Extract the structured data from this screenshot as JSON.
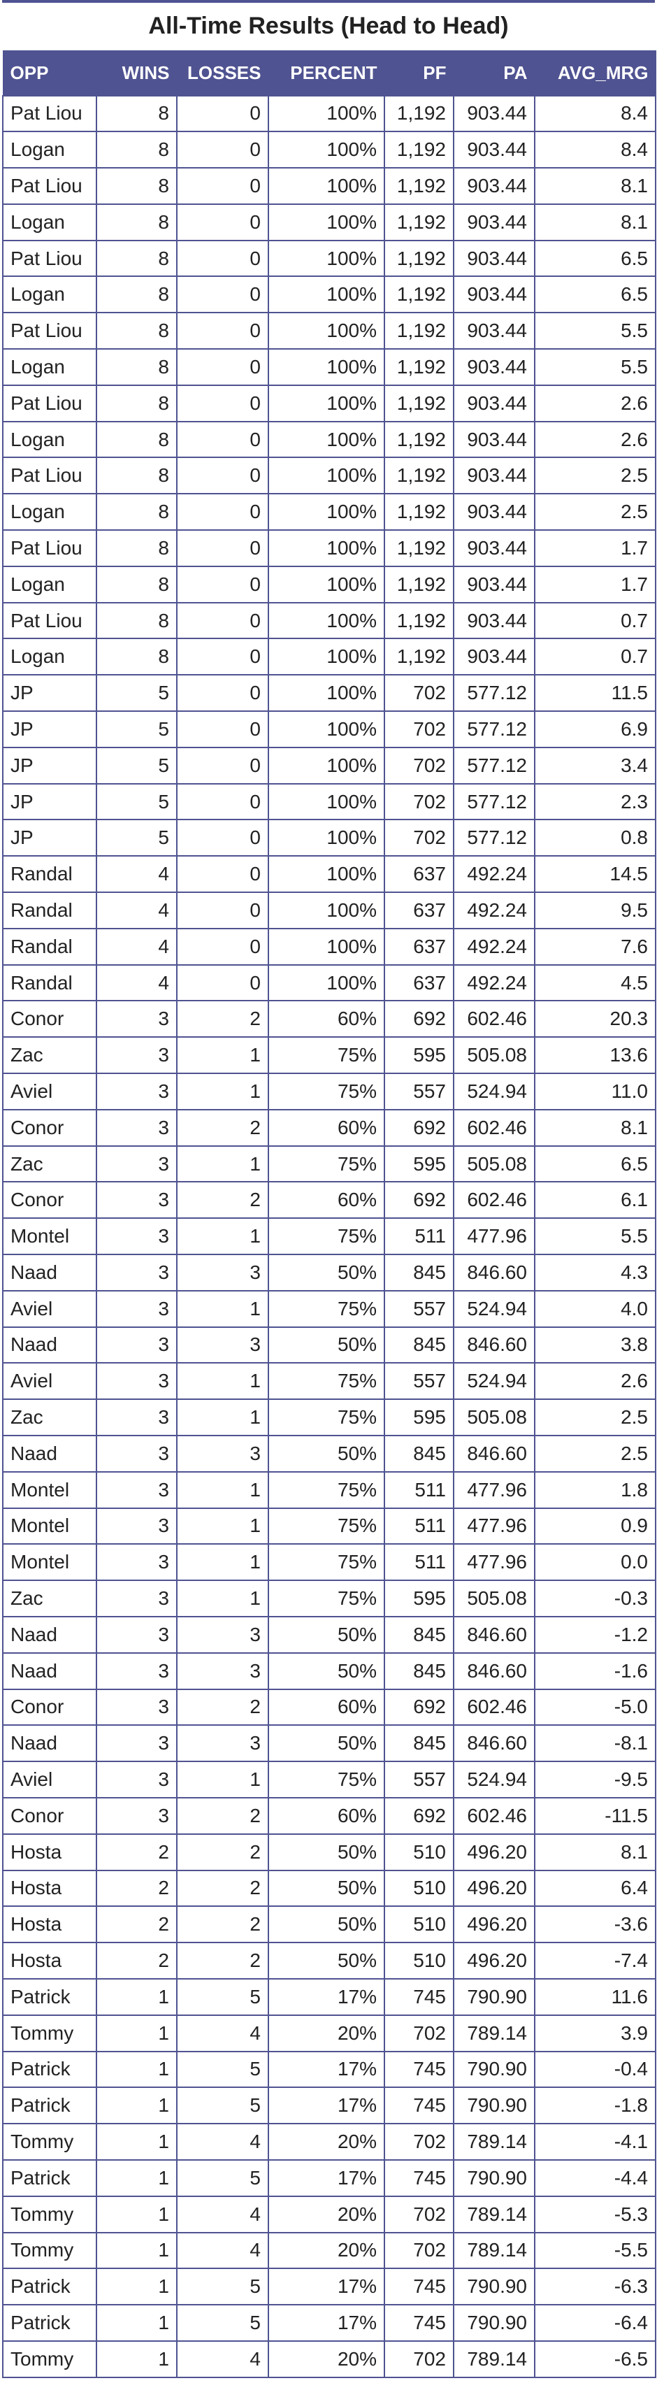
{
  "title": "All-Time Results (Head to Head)",
  "colors": {
    "accent": "#4f5391",
    "header_text": "#ffffff",
    "body_text": "#222222"
  },
  "table": {
    "headers": [
      "OPP",
      "WINS",
      "LOSSES",
      "PERCENT",
      "PF",
      "PA",
      "AVG_MRG"
    ],
    "rows": [
      [
        "Pat Liou",
        "8",
        "0",
        "100%",
        "1,192",
        "903.44",
        "8.4"
      ],
      [
        "Logan",
        "8",
        "0",
        "100%",
        "1,192",
        "903.44",
        "8.4"
      ],
      [
        "Pat Liou",
        "8",
        "0",
        "100%",
        "1,192",
        "903.44",
        "8.1"
      ],
      [
        "Logan",
        "8",
        "0",
        "100%",
        "1,192",
        "903.44",
        "8.1"
      ],
      [
        "Pat Liou",
        "8",
        "0",
        "100%",
        "1,192",
        "903.44",
        "6.5"
      ],
      [
        "Logan",
        "8",
        "0",
        "100%",
        "1,192",
        "903.44",
        "6.5"
      ],
      [
        "Pat Liou",
        "8",
        "0",
        "100%",
        "1,192",
        "903.44",
        "5.5"
      ],
      [
        "Logan",
        "8",
        "0",
        "100%",
        "1,192",
        "903.44",
        "5.5"
      ],
      [
        "Pat Liou",
        "8",
        "0",
        "100%",
        "1,192",
        "903.44",
        "2.6"
      ],
      [
        "Logan",
        "8",
        "0",
        "100%",
        "1,192",
        "903.44",
        "2.6"
      ],
      [
        "Pat Liou",
        "8",
        "0",
        "100%",
        "1,192",
        "903.44",
        "2.5"
      ],
      [
        "Logan",
        "8",
        "0",
        "100%",
        "1,192",
        "903.44",
        "2.5"
      ],
      [
        "Pat Liou",
        "8",
        "0",
        "100%",
        "1,192",
        "903.44",
        "1.7"
      ],
      [
        "Logan",
        "8",
        "0",
        "100%",
        "1,192",
        "903.44",
        "1.7"
      ],
      [
        "Pat Liou",
        "8",
        "0",
        "100%",
        "1,192",
        "903.44",
        "0.7"
      ],
      [
        "Logan",
        "8",
        "0",
        "100%",
        "1,192",
        "903.44",
        "0.7"
      ],
      [
        "JP",
        "5",
        "0",
        "100%",
        "702",
        "577.12",
        "11.5"
      ],
      [
        "JP",
        "5",
        "0",
        "100%",
        "702",
        "577.12",
        "6.9"
      ],
      [
        "JP",
        "5",
        "0",
        "100%",
        "702",
        "577.12",
        "3.4"
      ],
      [
        "JP",
        "5",
        "0",
        "100%",
        "702",
        "577.12",
        "2.3"
      ],
      [
        "JP",
        "5",
        "0",
        "100%",
        "702",
        "577.12",
        "0.8"
      ],
      [
        "Randal",
        "4",
        "0",
        "100%",
        "637",
        "492.24",
        "14.5"
      ],
      [
        "Randal",
        "4",
        "0",
        "100%",
        "637",
        "492.24",
        "9.5"
      ],
      [
        "Randal",
        "4",
        "0",
        "100%",
        "637",
        "492.24",
        "7.6"
      ],
      [
        "Randal",
        "4",
        "0",
        "100%",
        "637",
        "492.24",
        "4.5"
      ],
      [
        "Conor",
        "3",
        "2",
        "60%",
        "692",
        "602.46",
        "20.3"
      ],
      [
        "Zac",
        "3",
        "1",
        "75%",
        "595",
        "505.08",
        "13.6"
      ],
      [
        "Aviel",
        "3",
        "1",
        "75%",
        "557",
        "524.94",
        "11.0"
      ],
      [
        "Conor",
        "3",
        "2",
        "60%",
        "692",
        "602.46",
        "8.1"
      ],
      [
        "Zac",
        "3",
        "1",
        "75%",
        "595",
        "505.08",
        "6.5"
      ],
      [
        "Conor",
        "3",
        "2",
        "60%",
        "692",
        "602.46",
        "6.1"
      ],
      [
        "Montel",
        "3",
        "1",
        "75%",
        "511",
        "477.96",
        "5.5"
      ],
      [
        "Naad",
        "3",
        "3",
        "50%",
        "845",
        "846.60",
        "4.3"
      ],
      [
        "Aviel",
        "3",
        "1",
        "75%",
        "557",
        "524.94",
        "4.0"
      ],
      [
        "Naad",
        "3",
        "3",
        "50%",
        "845",
        "846.60",
        "3.8"
      ],
      [
        "Aviel",
        "3",
        "1",
        "75%",
        "557",
        "524.94",
        "2.6"
      ],
      [
        "Zac",
        "3",
        "1",
        "75%",
        "595",
        "505.08",
        "2.5"
      ],
      [
        "Naad",
        "3",
        "3",
        "50%",
        "845",
        "846.60",
        "2.5"
      ],
      [
        "Montel",
        "3",
        "1",
        "75%",
        "511",
        "477.96",
        "1.8"
      ],
      [
        "Montel",
        "3",
        "1",
        "75%",
        "511",
        "477.96",
        "0.9"
      ],
      [
        "Montel",
        "3",
        "1",
        "75%",
        "511",
        "477.96",
        "0.0"
      ],
      [
        "Zac",
        "3",
        "1",
        "75%",
        "595",
        "505.08",
        "-0.3"
      ],
      [
        "Naad",
        "3",
        "3",
        "50%",
        "845",
        "846.60",
        "-1.2"
      ],
      [
        "Naad",
        "3",
        "3",
        "50%",
        "845",
        "846.60",
        "-1.6"
      ],
      [
        "Conor",
        "3",
        "2",
        "60%",
        "692",
        "602.46",
        "-5.0"
      ],
      [
        "Naad",
        "3",
        "3",
        "50%",
        "845",
        "846.60",
        "-8.1"
      ],
      [
        "Aviel",
        "3",
        "1",
        "75%",
        "557",
        "524.94",
        "-9.5"
      ],
      [
        "Conor",
        "3",
        "2",
        "60%",
        "692",
        "602.46",
        "-11.5"
      ],
      [
        "Hosta",
        "2",
        "2",
        "50%",
        "510",
        "496.20",
        "8.1"
      ],
      [
        "Hosta",
        "2",
        "2",
        "50%",
        "510",
        "496.20",
        "6.4"
      ],
      [
        "Hosta",
        "2",
        "2",
        "50%",
        "510",
        "496.20",
        "-3.6"
      ],
      [
        "Hosta",
        "2",
        "2",
        "50%",
        "510",
        "496.20",
        "-7.4"
      ],
      [
        "Patrick",
        "1",
        "5",
        "17%",
        "745",
        "790.90",
        "11.6"
      ],
      [
        "Tommy",
        "1",
        "4",
        "20%",
        "702",
        "789.14",
        "3.9"
      ],
      [
        "Patrick",
        "1",
        "5",
        "17%",
        "745",
        "790.90",
        "-0.4"
      ],
      [
        "Patrick",
        "1",
        "5",
        "17%",
        "745",
        "790.90",
        "-1.8"
      ],
      [
        "Tommy",
        "1",
        "4",
        "20%",
        "702",
        "789.14",
        "-4.1"
      ],
      [
        "Patrick",
        "1",
        "5",
        "17%",
        "745",
        "790.90",
        "-4.4"
      ],
      [
        "Tommy",
        "1",
        "4",
        "20%",
        "702",
        "789.14",
        "-5.3"
      ],
      [
        "Tommy",
        "1",
        "4",
        "20%",
        "702",
        "789.14",
        "-5.5"
      ],
      [
        "Patrick",
        "1",
        "5",
        "17%",
        "745",
        "790.90",
        "-6.3"
      ],
      [
        "Patrick",
        "1",
        "5",
        "17%",
        "745",
        "790.90",
        "-6.4"
      ],
      [
        "Tommy",
        "1",
        "4",
        "20%",
        "702",
        "789.14",
        "-6.5"
      ]
    ]
  }
}
